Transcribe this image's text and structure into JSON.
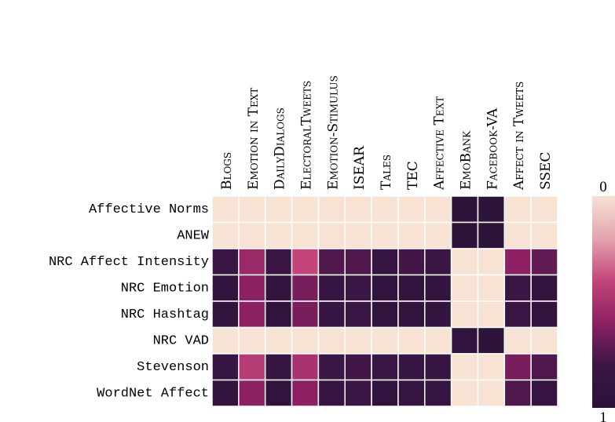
{
  "chart_data": {
    "type": "heatmap",
    "columns": [
      "Blogs",
      "Emotion in Text",
      "DailyDialogs",
      "ElectoralTweets",
      "Emotion-Stimulus",
      "ISEAR",
      "Tales",
      "TEC",
      "Affective Text",
      "EmoBank",
      "Facebook-VA",
      "Affect in Tweets",
      "SSEC"
    ],
    "rows": [
      "Affective Norms",
      "ANEW",
      "NRC Affect Intensity",
      "NRC Emotion",
      "NRC Hashtag",
      "NRC VAD",
      "Stevenson",
      "WordNet Affect"
    ],
    "values": [
      [
        0,
        0,
        0,
        0,
        0,
        0,
        0,
        0,
        0,
        0.95,
        0.95,
        0,
        0
      ],
      [
        0,
        0,
        0,
        0,
        0,
        0,
        0,
        0,
        0,
        0.95,
        0.95,
        0,
        0
      ],
      [
        0.8,
        0.55,
        0.8,
        0.4,
        0.75,
        0.75,
        0.85,
        0.78,
        0.8,
        0,
        0,
        0.6,
        0.7
      ],
      [
        0.9,
        0.6,
        0.9,
        0.65,
        0.85,
        0.8,
        0.92,
        0.9,
        0.9,
        0,
        0,
        0.8,
        0.9
      ],
      [
        0.9,
        0.6,
        0.92,
        0.65,
        0.85,
        0.8,
        0.92,
        0.9,
        0.9,
        0,
        0,
        0.8,
        0.9
      ],
      [
        0,
        0,
        0,
        0,
        0,
        0,
        0,
        0,
        0,
        0.92,
        0.95,
        0,
        0
      ],
      [
        0.85,
        0.45,
        0.85,
        0.5,
        0.8,
        0.78,
        0.8,
        0.82,
        0.82,
        0,
        0,
        0.65,
        0.75
      ],
      [
        0.9,
        0.6,
        0.92,
        0.6,
        0.85,
        0.8,
        0.92,
        0.88,
        0.88,
        0,
        0,
        0.75,
        0.85
      ]
    ],
    "clim": [
      0,
      1
    ],
    "colorbar_ticks": [
      0,
      1
    ],
    "colorscale": [
      "#f7e2d4",
      "#e3a4ae",
      "#c3457a",
      "#8c2063",
      "#3a1645",
      "#2a1238"
    ]
  }
}
